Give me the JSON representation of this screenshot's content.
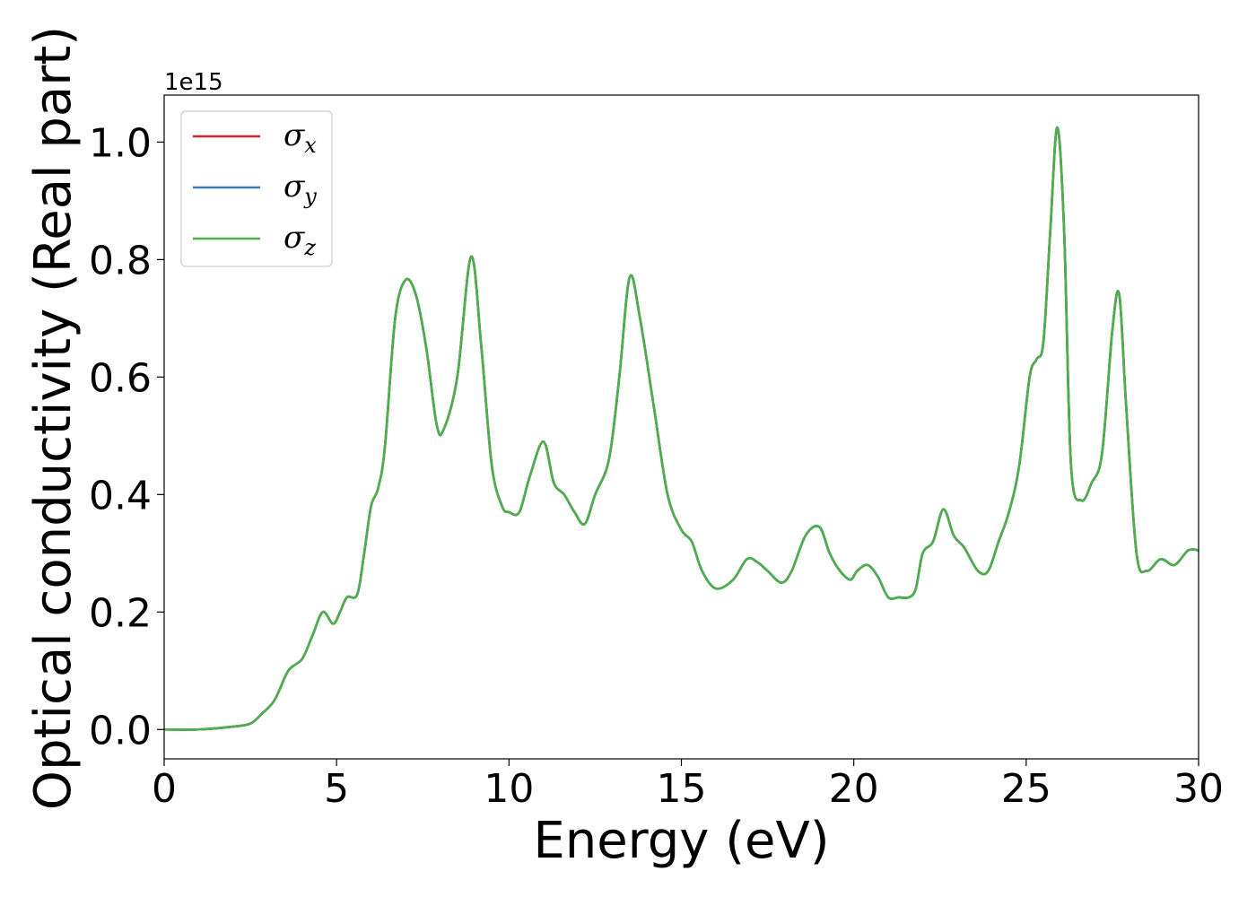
{
  "chart_data": {
    "type": "line",
    "xlabel": "Energy (eV)",
    "ylabel": "Optical conductivity (Real part)",
    "y_offset_label": "1e15",
    "xlim": [
      0,
      30
    ],
    "ylim": [
      -0.05,
      1.08
    ],
    "xticks": [
      0,
      5,
      10,
      15,
      20,
      25,
      30
    ],
    "xtick_labels": [
      "0",
      "5",
      "10",
      "15",
      "20",
      "25",
      "30"
    ],
    "yticks": [
      0.0,
      0.2,
      0.4,
      0.6,
      0.8,
      1.0
    ],
    "ytick_labels": [
      "0.0",
      "0.2",
      "0.4",
      "0.6",
      "0.8",
      "1.0"
    ],
    "grid": false,
    "legend_position": "top-left",
    "series": [
      {
        "name": "σx",
        "symbol": "σ",
        "subscript": "x",
        "color": "#d62728",
        "x": [
          0,
          1,
          2,
          2.5,
          2.8,
          3.2,
          3.6,
          4.0,
          4.3,
          4.6,
          4.9,
          5.1,
          5.3,
          5.6,
          5.8,
          6.0,
          6.2,
          6.4,
          6.7,
          7.0,
          7.3,
          7.6,
          7.9,
          8.1,
          8.5,
          8.9,
          9.2,
          9.5,
          9.8,
          10.0,
          10.3,
          10.6,
          11.0,
          11.3,
          11.6,
          11.9,
          12.2,
          12.5,
          12.9,
          13.2,
          13.5,
          13.8,
          14.2,
          14.6,
          15.0,
          15.3,
          15.6,
          16.0,
          16.5,
          16.9,
          17.2,
          17.5,
          17.9,
          18.2,
          18.6,
          19.0,
          19.3,
          19.6,
          19.9,
          20.1,
          20.4,
          20.7,
          21.0,
          21.3,
          21.6,
          21.8,
          22.0,
          22.3,
          22.6,
          22.9,
          23.2,
          23.6,
          23.9,
          24.2,
          24.5,
          24.8,
          25.1,
          25.3,
          25.5,
          25.7,
          25.9,
          26.1,
          26.3,
          26.6,
          26.9,
          27.2,
          27.5,
          27.7,
          27.9,
          28.2,
          28.5,
          28.9,
          29.3,
          29.7,
          30.0
        ],
        "y": [
          0.0,
          0.0,
          0.005,
          0.01,
          0.025,
          0.05,
          0.1,
          0.12,
          0.16,
          0.2,
          0.18,
          0.2,
          0.225,
          0.23,
          0.3,
          0.38,
          0.41,
          0.48,
          0.7,
          0.765,
          0.74,
          0.65,
          0.52,
          0.51,
          0.6,
          0.805,
          0.65,
          0.45,
          0.38,
          0.37,
          0.37,
          0.43,
          0.49,
          0.42,
          0.4,
          0.37,
          0.35,
          0.4,
          0.46,
          0.6,
          0.77,
          0.7,
          0.55,
          0.4,
          0.34,
          0.32,
          0.27,
          0.24,
          0.255,
          0.29,
          0.285,
          0.27,
          0.25,
          0.27,
          0.33,
          0.345,
          0.3,
          0.27,
          0.255,
          0.27,
          0.28,
          0.26,
          0.225,
          0.225,
          0.225,
          0.24,
          0.3,
          0.32,
          0.375,
          0.33,
          0.31,
          0.27,
          0.27,
          0.32,
          0.37,
          0.45,
          0.6,
          0.63,
          0.66,
          0.85,
          1.025,
          0.85,
          0.45,
          0.39,
          0.42,
          0.47,
          0.68,
          0.74,
          0.55,
          0.3,
          0.27,
          0.29,
          0.28,
          0.305,
          0.305
        ]
      },
      {
        "name": "σy",
        "symbol": "σ",
        "subscript": "y",
        "color": "#377eb8",
        "x": [
          0,
          1,
          2,
          2.5,
          2.8,
          3.2,
          3.6,
          4.0,
          4.3,
          4.6,
          4.9,
          5.1,
          5.3,
          5.6,
          5.8,
          6.0,
          6.2,
          6.4,
          6.7,
          7.0,
          7.3,
          7.6,
          7.9,
          8.1,
          8.5,
          8.9,
          9.2,
          9.5,
          9.8,
          10.0,
          10.3,
          10.6,
          11.0,
          11.3,
          11.6,
          11.9,
          12.2,
          12.5,
          12.9,
          13.2,
          13.5,
          13.8,
          14.2,
          14.6,
          15.0,
          15.3,
          15.6,
          16.0,
          16.5,
          16.9,
          17.2,
          17.5,
          17.9,
          18.2,
          18.6,
          19.0,
          19.3,
          19.6,
          19.9,
          20.1,
          20.4,
          20.7,
          21.0,
          21.3,
          21.6,
          21.8,
          22.0,
          22.3,
          22.6,
          22.9,
          23.2,
          23.6,
          23.9,
          24.2,
          24.5,
          24.8,
          25.1,
          25.3,
          25.5,
          25.7,
          25.9,
          26.1,
          26.3,
          26.6,
          26.9,
          27.2,
          27.5,
          27.7,
          27.9,
          28.2,
          28.5,
          28.9,
          29.3,
          29.7,
          30.0
        ],
        "y": [
          0.0,
          0.0,
          0.005,
          0.01,
          0.025,
          0.05,
          0.1,
          0.12,
          0.16,
          0.2,
          0.18,
          0.2,
          0.225,
          0.23,
          0.3,
          0.38,
          0.41,
          0.48,
          0.7,
          0.765,
          0.74,
          0.65,
          0.52,
          0.51,
          0.6,
          0.805,
          0.65,
          0.45,
          0.38,
          0.37,
          0.37,
          0.43,
          0.49,
          0.42,
          0.4,
          0.37,
          0.35,
          0.4,
          0.46,
          0.6,
          0.77,
          0.7,
          0.55,
          0.4,
          0.34,
          0.32,
          0.27,
          0.24,
          0.255,
          0.29,
          0.285,
          0.27,
          0.25,
          0.27,
          0.33,
          0.345,
          0.3,
          0.27,
          0.255,
          0.27,
          0.28,
          0.26,
          0.225,
          0.225,
          0.225,
          0.24,
          0.3,
          0.32,
          0.375,
          0.33,
          0.31,
          0.27,
          0.27,
          0.32,
          0.37,
          0.45,
          0.6,
          0.63,
          0.66,
          0.85,
          1.025,
          0.85,
          0.45,
          0.39,
          0.42,
          0.47,
          0.68,
          0.74,
          0.55,
          0.3,
          0.27,
          0.29,
          0.28,
          0.305,
          0.305
        ]
      },
      {
        "name": "σz",
        "symbol": "σ",
        "subscript": "z",
        "color": "#4daf4a",
        "x": [
          0,
          1,
          2,
          2.5,
          2.8,
          3.2,
          3.6,
          4.0,
          4.3,
          4.6,
          4.9,
          5.1,
          5.3,
          5.6,
          5.8,
          6.0,
          6.2,
          6.4,
          6.7,
          7.0,
          7.3,
          7.6,
          7.9,
          8.1,
          8.5,
          8.9,
          9.2,
          9.5,
          9.8,
          10.0,
          10.3,
          10.6,
          11.0,
          11.3,
          11.6,
          11.9,
          12.2,
          12.5,
          12.9,
          13.2,
          13.5,
          13.8,
          14.2,
          14.6,
          15.0,
          15.3,
          15.6,
          16.0,
          16.5,
          16.9,
          17.2,
          17.5,
          17.9,
          18.2,
          18.6,
          19.0,
          19.3,
          19.6,
          19.9,
          20.1,
          20.4,
          20.7,
          21.0,
          21.3,
          21.6,
          21.8,
          22.0,
          22.3,
          22.6,
          22.9,
          23.2,
          23.6,
          23.9,
          24.2,
          24.5,
          24.8,
          25.1,
          25.3,
          25.5,
          25.7,
          25.9,
          26.1,
          26.3,
          26.6,
          26.9,
          27.2,
          27.5,
          27.7,
          27.9,
          28.2,
          28.5,
          28.9,
          29.3,
          29.7,
          30.0
        ],
        "y": [
          0.0,
          0.0,
          0.005,
          0.01,
          0.025,
          0.05,
          0.1,
          0.12,
          0.16,
          0.2,
          0.18,
          0.2,
          0.225,
          0.23,
          0.3,
          0.38,
          0.41,
          0.48,
          0.7,
          0.765,
          0.74,
          0.65,
          0.52,
          0.51,
          0.6,
          0.805,
          0.65,
          0.45,
          0.38,
          0.37,
          0.37,
          0.43,
          0.49,
          0.42,
          0.4,
          0.37,
          0.35,
          0.4,
          0.46,
          0.6,
          0.77,
          0.7,
          0.55,
          0.4,
          0.34,
          0.32,
          0.27,
          0.24,
          0.255,
          0.29,
          0.285,
          0.27,
          0.25,
          0.27,
          0.33,
          0.345,
          0.3,
          0.27,
          0.255,
          0.27,
          0.28,
          0.26,
          0.225,
          0.225,
          0.225,
          0.24,
          0.3,
          0.32,
          0.375,
          0.33,
          0.31,
          0.27,
          0.27,
          0.32,
          0.37,
          0.45,
          0.6,
          0.63,
          0.66,
          0.85,
          1.025,
          0.85,
          0.45,
          0.39,
          0.42,
          0.47,
          0.68,
          0.74,
          0.55,
          0.3,
          0.27,
          0.29,
          0.28,
          0.305,
          0.305
        ]
      }
    ]
  }
}
